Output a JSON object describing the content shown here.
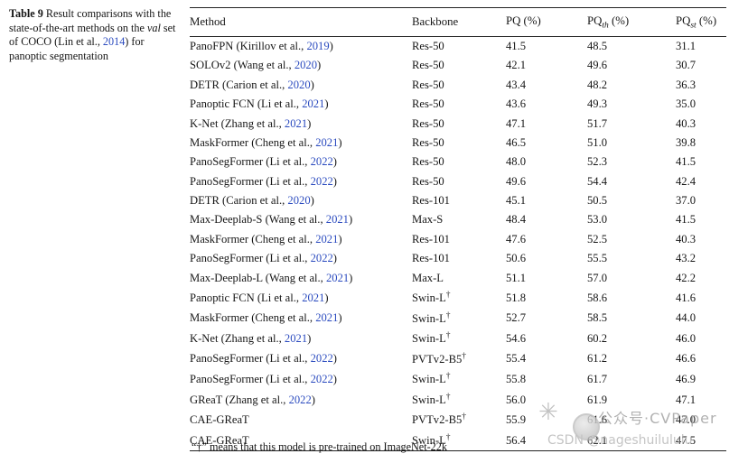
{
  "caption": {
    "label": "Table 9",
    "text1": "  Result comparisons with the state-of-the-art methods on the ",
    "val_word": "val",
    "text2": " set of COCO (Lin et al., ",
    "year_link": "2014",
    "text3": ") for panoptic segmentation"
  },
  "table": {
    "headers": {
      "method": "Method",
      "backbone": "Backbone",
      "pq": {
        "pre": "PQ",
        "sub": "",
        "post": " (%)"
      },
      "pqth": {
        "pre": "PQ",
        "sub": "th",
        "post": " (%)"
      },
      "pqst": {
        "pre": "PQ",
        "sub": "st",
        "post": " (%)"
      }
    },
    "rows": [
      {
        "method_pre": "PanoFPN (Kirillov et al., ",
        "year": "2019",
        "backbone": "Res-50",
        "dagger": false,
        "pq": "41.5",
        "pqth": "48.5",
        "pqst": "31.1"
      },
      {
        "method_pre": "SOLOv2 (Wang et al., ",
        "year": "2020",
        "backbone": "Res-50",
        "dagger": false,
        "pq": "42.1",
        "pqth": "49.6",
        "pqst": "30.7"
      },
      {
        "method_pre": "DETR (Carion et al., ",
        "year": "2020",
        "backbone": "Res-50",
        "dagger": false,
        "pq": "43.4",
        "pqth": "48.2",
        "pqst": "36.3"
      },
      {
        "method_pre": "Panoptic FCN (Li et al., ",
        "year": "2021",
        "backbone": "Res-50",
        "dagger": false,
        "pq": "43.6",
        "pqth": "49.3",
        "pqst": "35.0"
      },
      {
        "method_pre": "K-Net (Zhang et al., ",
        "year": "2021",
        "backbone": "Res-50",
        "dagger": false,
        "pq": "47.1",
        "pqth": "51.7",
        "pqst": "40.3"
      },
      {
        "method_pre": "MaskFormer (Cheng et al., ",
        "year": "2021",
        "backbone": "Res-50",
        "dagger": false,
        "pq": "46.5",
        "pqth": "51.0",
        "pqst": "39.8"
      },
      {
        "method_pre": "PanoSegFormer (Li et al., ",
        "year": "2022",
        "backbone": "Res-50",
        "dagger": false,
        "pq": "48.0",
        "pqth": "52.3",
        "pqst": "41.5"
      },
      {
        "method_pre": "PanoSegFormer (Li et al., ",
        "year": "2022",
        "backbone": "Res-50",
        "dagger": false,
        "pq": "49.6",
        "pqth": "54.4",
        "pqst": "42.4"
      },
      {
        "method_pre": "DETR (Carion et al., ",
        "year": "2020",
        "backbone": "Res-101",
        "dagger": false,
        "pq": "45.1",
        "pqth": "50.5",
        "pqst": "37.0"
      },
      {
        "method_pre": "Max-Deeplab-S (Wang et al., ",
        "year": "2021",
        "backbone": "Max-S",
        "dagger": false,
        "pq": "48.4",
        "pqth": "53.0",
        "pqst": "41.5"
      },
      {
        "method_pre": "MaskFormer (Cheng et al., ",
        "year": "2021",
        "backbone": "Res-101",
        "dagger": false,
        "pq": "47.6",
        "pqth": "52.5",
        "pqst": "40.3"
      },
      {
        "method_pre": "PanoSegFormer (Li et al., ",
        "year": "2022",
        "backbone": "Res-101",
        "dagger": false,
        "pq": "50.6",
        "pqth": "55.5",
        "pqst": "43.2"
      },
      {
        "method_pre": "Max-Deeplab-L (Wang et al., ",
        "year": "2021",
        "backbone": "Max-L",
        "dagger": false,
        "pq": "51.1",
        "pqth": "57.0",
        "pqst": "42.2"
      },
      {
        "method_pre": "Panoptic FCN (Li et al., ",
        "year": "2021",
        "backbone": "Swin-L",
        "dagger": true,
        "pq": "51.8",
        "pqth": "58.6",
        "pqst": "41.6"
      },
      {
        "method_pre": "MaskFormer (Cheng et al., ",
        "year": "2021",
        "backbone": "Swin-L",
        "dagger": true,
        "pq": "52.7",
        "pqth": "58.5",
        "pqst": "44.0"
      },
      {
        "method_pre": "K-Net (Zhang et al., ",
        "year": "2021",
        "backbone": "Swin-L",
        "dagger": true,
        "pq": "54.6",
        "pqth": "60.2",
        "pqst": "46.0"
      },
      {
        "method_pre": "PanoSegFormer (Li et al., ",
        "year": "2022",
        "backbone": "PVTv2-B5",
        "dagger": true,
        "pq": "55.4",
        "pqth": "61.2",
        "pqst": "46.6"
      },
      {
        "method_pre": "PanoSegFormer (Li et al., ",
        "year": "2022",
        "backbone": "Swin-L",
        "dagger": true,
        "pq": "55.8",
        "pqth": "61.7",
        "pqst": "46.9"
      },
      {
        "method_pre": "GReaT (Zhang et al., ",
        "year": "2022",
        "backbone": "Swin-L",
        "dagger": true,
        "pq": "56.0",
        "pqth": "61.9",
        "pqst": "47.1"
      },
      {
        "method_pre": "CAE-GReaT",
        "year": "",
        "backbone": "PVTv2-B5",
        "dagger": true,
        "pq": "55.9",
        "pqth": "61.6",
        "pqst": "47.0"
      },
      {
        "method_pre": "CAE-GReaT",
        "year": "",
        "backbone": "Swin-L",
        "dagger": true,
        "pq": "56.4",
        "pqth": "62.1",
        "pqst": "47.5"
      }
    ],
    "footnote": "“†” means that this model is pre-trained on ImageNet-22k",
    "dagger_symbol": "†"
  },
  "watermark": {
    "asterisk_icon": "✳",
    "line1": "公众号·CVPaper",
    "line2": "CSDN @nageshuilululu"
  },
  "colors": {
    "link": "#2b4bbf",
    "text": "#161616",
    "watermark_gray": "#9e9e9e"
  }
}
